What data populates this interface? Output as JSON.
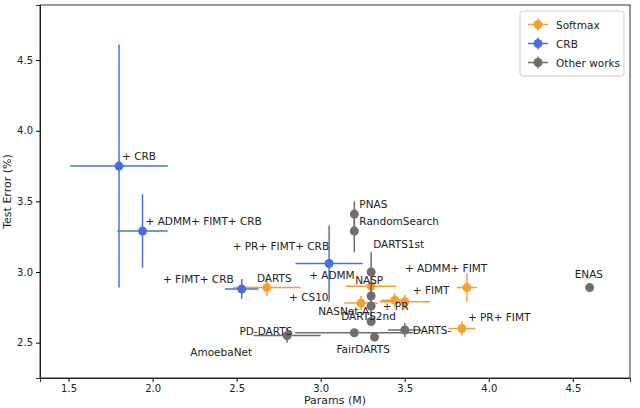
{
  "chart_data": {
    "type": "scatter",
    "x_label": "Params (M)",
    "y_label": "Test Error (%)",
    "xlim": [
      1.33,
      4.84
    ],
    "ylim": [
      2.25,
      4.89
    ],
    "xticks": [
      1.5,
      {
        "value": 2,
        "label": "2.0"
      },
      2.5,
      {
        "value": 3,
        "label": "3.0"
      },
      3.5,
      {
        "value": 4,
        "label": "4.0"
      },
      4.5
    ],
    "yticks": [
      2.5,
      {
        "value": 3,
        "label": "3.0"
      },
      3.5,
      {
        "value": 4,
        "label": "4.0"
      },
      4.5
    ],
    "grid": false,
    "legend": "upper right",
    "series": [
      {
        "name": "Softmax",
        "color": "#f5a030",
        "marker": "o",
        "labels": [
          "DARTS",
          "+ ADMM",
          "+ CS10",
          "+ FIMT",
          "+ PR",
          "+ ADMM+ FIMT",
          "+ PR+ FIMT"
        ],
        "x": [
          2.68,
          3.3,
          3.24,
          3.5,
          3.44,
          3.87,
          3.84
        ],
        "values": [
          2.89,
          2.9,
          2.78,
          2.79,
          2.8,
          2.89,
          2.6
        ],
        "x_error": [
          0.2,
          0.15,
          0.1,
          0.15,
          0.08,
          0.06,
          0.08
        ],
        "y_error": [
          0.06,
          0.05,
          0.05,
          0.05,
          0.05,
          0.1,
          0.05
        ]
      },
      {
        "name": "CRB",
        "color": "#4a6fdc",
        "marker": "o",
        "labels": [
          "+ CRB",
          "+ ADMM+ FIMT+ CRB",
          "+ FIMT+ CRB",
          "+ PR+ FIMT+ CRB"
        ],
        "x": [
          1.8,
          1.94,
          2.53,
          3.05
        ],
        "values": [
          3.75,
          3.29,
          2.88,
          3.06
        ],
        "x_error": [
          0.29,
          0.15,
          0.1,
          0.2
        ],
        "y_error": [
          0.86,
          0.26,
          0.07,
          0.27
        ]
      },
      {
        "name": "Other works",
        "color": "#6e6e6e",
        "marker": "o",
        "labels": [
          "PNAS",
          "RandomSearch",
          "DARTS1st",
          "NASP",
          "DARTS2nd",
          "ENAS",
          "NASNet-A",
          "PD-DARTS",
          "AmoebaNet",
          "FairDARTS",
          "DARTS-"
        ],
        "x": [
          3.2,
          3.2,
          3.3,
          3.3,
          3.3,
          4.6,
          3.3,
          3.2,
          2.8,
          3.32,
          3.5
        ],
        "values": [
          3.41,
          3.29,
          3.0,
          2.83,
          2.76,
          2.89,
          2.65,
          2.57,
          2.55,
          2.54,
          2.59
        ],
        "x_error": [
          0,
          0,
          0,
          0,
          0,
          0,
          0,
          0.35,
          0.2,
          0,
          0.1
        ],
        "y_error": [
          0.09,
          0.15,
          0.14,
          0.09,
          0.09,
          0,
          0,
          0,
          0.05,
          0.03,
          0.05
        ]
      }
    ]
  }
}
